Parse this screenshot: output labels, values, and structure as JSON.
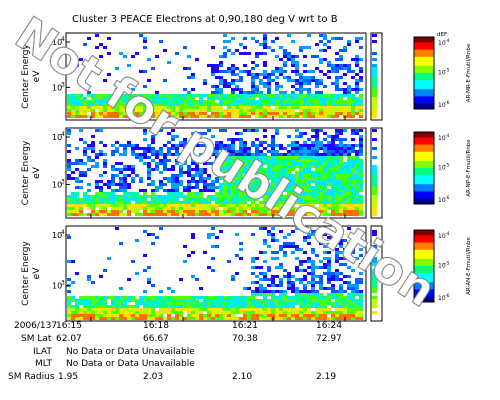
{
  "title": "Cluster 3 PEACE Electrons at 0,90,180 deg V wrt to B",
  "watermark": "Not for publication",
  "chart_data": [
    {
      "type": "heatmap",
      "title": "",
      "ylabel": "Center Energy eV",
      "ylabel_lines": [
        "Center Energy",
        "eV"
      ],
      "pitch_angle_deg": 0,
      "y_scale": "log",
      "y_ticks": [
        {
          "base": "10",
          "exp": "4",
          "value": 10000
        },
        {
          "base": "10",
          "exp": "3",
          "value": 1000
        }
      ],
      "x_tick_labels": [
        "16:15",
        "16:18",
        "16:21",
        "16:24"
      ],
      "colorbar": {
        "scale": "log",
        "tick_labels": [
          {
            "base": "10",
            "exp": "-4"
          },
          {
            "base": "10",
            "exp": "-5"
          },
          {
            "base": "10",
            "exp": "-6"
          }
        ],
        "unit_label": "dEF",
        "axis_label": "AR-MR-E-Fmutil/Rnbe",
        "colors": [
          "#000090",
          "#0000ff",
          "#0080ff",
          "#00ffff",
          "#00ff80",
          "#80ff00",
          "#ffff00",
          "#ff8000",
          "#ff0000",
          "#800000"
        ]
      }
    },
    {
      "type": "heatmap",
      "title": "",
      "ylabel": "Center Energy eV",
      "ylabel_lines": [
        "Center Energy",
        "eV"
      ],
      "pitch_angle_deg": 90,
      "y_scale": "log",
      "y_ticks": [
        {
          "base": "10",
          "exp": "4",
          "value": 10000
        },
        {
          "base": "10",
          "exp": "3",
          "value": 1000
        }
      ],
      "x_tick_labels": [
        "16:15",
        "16:18",
        "16:21",
        "16:24"
      ],
      "colorbar": {
        "scale": "log",
        "tick_labels": [
          {
            "base": "10",
            "exp": "-4"
          },
          {
            "base": "10",
            "exp": "-5"
          },
          {
            "base": "10",
            "exp": "-6"
          }
        ],
        "unit_label": "",
        "axis_label": "AR-NP-E-Fmutil/Rnbe",
        "colors": [
          "#000090",
          "#0000ff",
          "#0080ff",
          "#00ffff",
          "#00ff80",
          "#80ff00",
          "#ffff00",
          "#ff8000",
          "#ff0000",
          "#800000"
        ]
      }
    },
    {
      "type": "heatmap",
      "title": "",
      "ylabel": "Center Energy eV",
      "ylabel_lines": [
        "Center Energy",
        "eV"
      ],
      "pitch_angle_deg": 180,
      "y_scale": "log",
      "y_ticks": [
        {
          "base": "10",
          "exp": "4",
          "value": 10000
        },
        {
          "base": "10",
          "exp": "3",
          "value": 1000
        }
      ],
      "x_tick_labels": [
        "16:15",
        "16:18",
        "16:21",
        "16:24"
      ],
      "colorbar": {
        "scale": "log",
        "tick_labels": [
          {
            "base": "10",
            "exp": "-4"
          },
          {
            "base": "10",
            "exp": "-5"
          },
          {
            "base": "10",
            "exp": "-6"
          }
        ],
        "unit_label": "",
        "axis_label": "AR-AN-E-Fmutil/Rnbe",
        "colors": [
          "#000090",
          "#0000ff",
          "#0080ff",
          "#00ffff",
          "#00ff80",
          "#80ff00",
          "#ffff00",
          "#ff8000",
          "#ff0000",
          "#800000"
        ]
      }
    }
  ],
  "ephemeris": {
    "date": "2006/137",
    "times": [
      "16:15",
      "16:18",
      "16:21",
      "16:24"
    ],
    "rows": [
      {
        "label": "SM Lat",
        "values": [
          "62.07",
          "66.67",
          "70.38",
          "72.97"
        ]
      },
      {
        "label": "ILAT",
        "values": [
          "No Data or Data Unavailable"
        ]
      },
      {
        "label": "MLT",
        "values": [
          "No Data or Data Unavailable"
        ]
      },
      {
        "label": "SM Radius",
        "values": [
          "1.95",
          "2.03",
          "2.10",
          "2.19"
        ]
      }
    ]
  }
}
